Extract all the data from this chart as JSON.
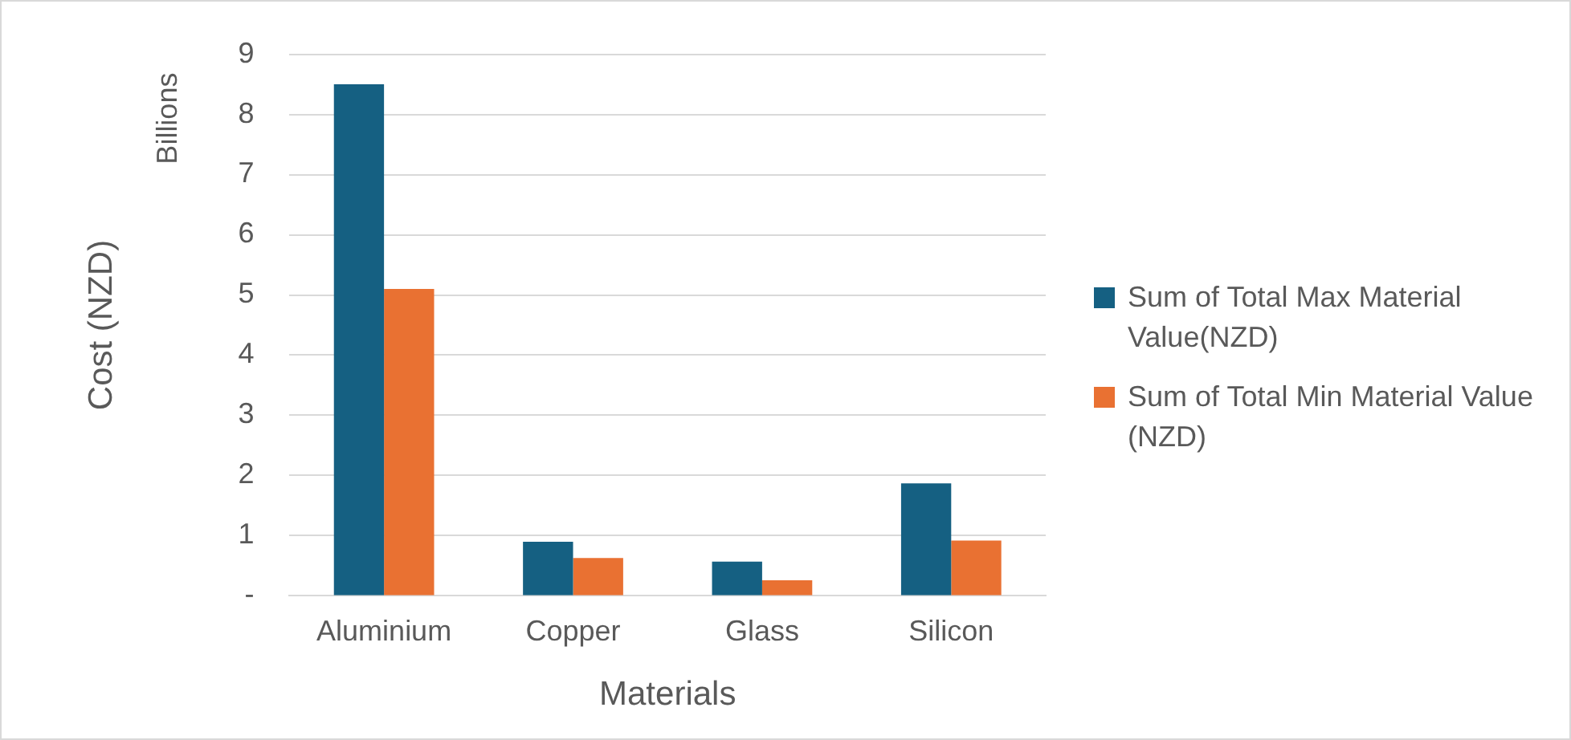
{
  "chart_data": {
    "type": "bar",
    "xlabel": "Materials",
    "ylabel": "Cost (NZD)",
    "annotations": [
      "Billions"
    ],
    "categories": [
      "Aluminium",
      "Copper",
      "Glass",
      "Silicon"
    ],
    "series": [
      {
        "name": "Sum of Total Max Material Value(NZD)",
        "color": "#156082",
        "values": [
          8.5,
          0.9,
          0.57,
          1.87
        ]
      },
      {
        "name": "Sum of Total Min Material Value (NZD)",
        "color": "#e97132",
        "values": [
          5.1,
          0.63,
          0.26,
          0.92
        ]
      }
    ],
    "ylim": [
      0,
      9
    ],
    "yticks": [
      {
        "value": 0,
        "label": "-"
      },
      1,
      2,
      3,
      4,
      5,
      6,
      7,
      8,
      9
    ],
    "grid": "y",
    "legend": "right"
  }
}
